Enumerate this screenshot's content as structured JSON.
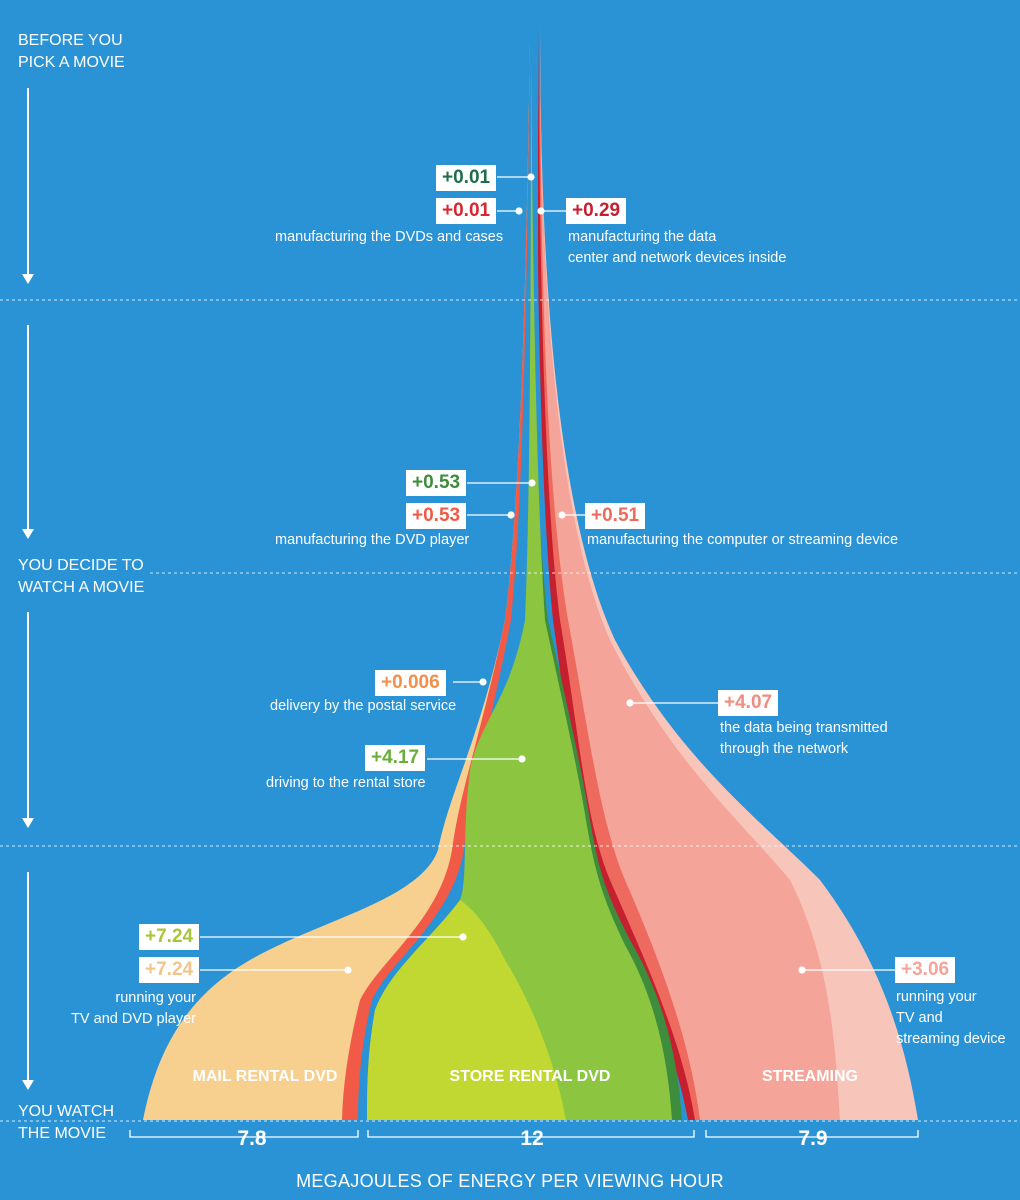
{
  "stages": [
    {
      "label": "BEFORE YOU\nPICK A MOVIE"
    },
    {
      "label": "YOU DECIDE TO\nWATCH A MOVIE"
    },
    {
      "label": "YOU WATCH\nTHE MOVIE"
    }
  ],
  "axis_title": "MEGAJOULES OF ENERGY PER VIEWING HOUR",
  "colors": {
    "background": "#2a93d5",
    "mail_dvd_fill": "#f7cf8f",
    "mail_dvd_stripe": "#f05a47",
    "store_dark_green": "#3e8d3c",
    "store_green": "#8cc540",
    "store_yellow_green": "#c1d832",
    "streaming_dark_red": "#c42030",
    "streaming_red": "#ee6a5e",
    "streaming_pink": "#f5a49a",
    "streaming_light": "#f8c5bb"
  },
  "chart_data": {
    "type": "area",
    "title": "",
    "xlabel": "MEGAJOULES OF ENERGY PER VIEWING HOUR",
    "categories": [
      "MAIL RENTAL DVD",
      "STORE RENTAL DVD",
      "STREAMING"
    ],
    "totals": [
      "7.8",
      "12",
      "7.9"
    ],
    "stages": [
      "BEFORE YOU PICK A MOVIE",
      "YOU DECIDE TO WATCH A MOVIE",
      "YOU WATCH THE MOVIE"
    ],
    "series": [
      {
        "category": "STORE RENTAL DVD",
        "value": "+0.01",
        "description": "",
        "color": "#3e8d3c"
      },
      {
        "category": "MAIL RENTAL DVD",
        "value": "+0.01",
        "description": "manufacturing the DVDs and cases",
        "color": "#d9262f"
      },
      {
        "category": "STREAMING",
        "value": "+0.29",
        "description": "manufacturing the data\ncenter and network devices inside",
        "color": "#c42030"
      },
      {
        "category": "STORE RENTAL DVD",
        "value": "+0.53",
        "description": "",
        "color": "#3e8d3c"
      },
      {
        "category": "MAIL RENTAL DVD",
        "value": "+0.53",
        "description": "manufacturing the DVD player",
        "color": "#f05a47"
      },
      {
        "category": "STREAMING",
        "value": "+0.51",
        "description": "manufacturing the computer or streaming device",
        "color": "#ee6a5e"
      },
      {
        "category": "MAIL RENTAL DVD",
        "value": "+0.006",
        "description": "delivery by the postal service",
        "color": "#f0904a"
      },
      {
        "category": "STORE RENTAL DVD",
        "value": "+4.17",
        "description": "driving to the rental store",
        "color": "#6aae3a"
      },
      {
        "category": "STREAMING",
        "value": "+4.07",
        "description": "the data being transmitted\nthrough the network",
        "color": "#f08c80"
      },
      {
        "category": "STORE RENTAL DVD",
        "value": "+7.24",
        "description": "",
        "color": "#a7c63a"
      },
      {
        "category": "MAIL RENTAL DVD",
        "value": "+7.24",
        "description": "running your\nTV and DVD player",
        "color": "#f2c58a"
      },
      {
        "category": "STREAMING",
        "value": "+3.06",
        "description": "running your\nTV and\nstreaming device",
        "color": "#f5a49a"
      }
    ]
  }
}
